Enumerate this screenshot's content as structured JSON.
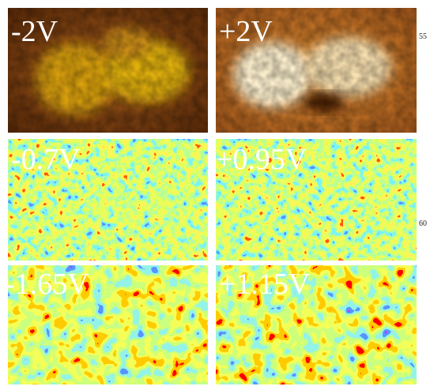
{
  "panels": [
    {
      "label": "-2V"
    },
    {
      "label": "+2V"
    },
    {
      "label": "-0.7V"
    },
    {
      "label": "+0.95V"
    },
    {
      "label": "-1.65V"
    },
    {
      "label": "+1.15V"
    }
  ],
  "line_numbers": [
    "55",
    "60"
  ]
}
